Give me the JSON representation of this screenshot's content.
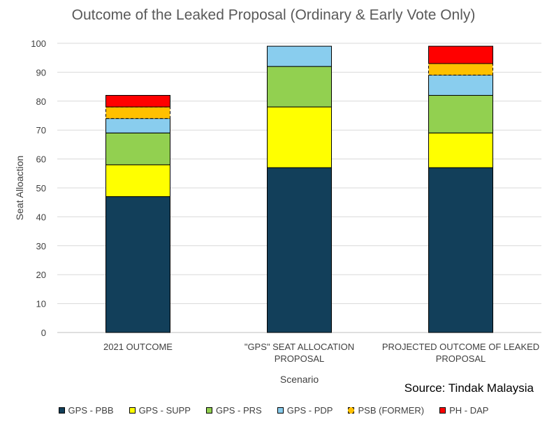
{
  "chart_data": {
    "type": "bar",
    "stacked": true,
    "title": "Outcome of the Leaked Proposal (Ordinary & Early Vote Only)",
    "xlabel": "Scenario",
    "ylabel": "Seat Alloaction",
    "ylim": [
      0,
      100
    ],
    "yticks": [
      0,
      10,
      20,
      30,
      40,
      50,
      60,
      70,
      80,
      90,
      100
    ],
    "grid": true,
    "legend_position": "bottom",
    "categories": [
      [
        "2021 OUTCOME"
      ],
      [
        "\"GPS\" SEAT ALLOCATION",
        "PROPOSAL"
      ],
      [
        "PROJECTED OUTCOME OF LEAKED",
        "PROPOSAL"
      ]
    ],
    "series": [
      {
        "name": "GPS - PBB",
        "color": "#123F5A",
        "dashed": false,
        "values": [
          47,
          57,
          57
        ]
      },
      {
        "name": "GPS - SUPP",
        "color": "#FFFF00",
        "dashed": false,
        "values": [
          11,
          21,
          12
        ]
      },
      {
        "name": "GPS - PRS",
        "color": "#92D050",
        "dashed": false,
        "values": [
          11,
          14,
          13
        ]
      },
      {
        "name": "GPS - PDP",
        "color": "#89CDEE",
        "dashed": false,
        "values": [
          5,
          7,
          7
        ]
      },
      {
        "name": "PSB (FORMER)",
        "color": "#FFC000",
        "dashed": true,
        "values": [
          4,
          0,
          4
        ]
      },
      {
        "name": "PH - DAP",
        "color": "#FF0000",
        "dashed": false,
        "values": [
          4,
          0,
          6
        ]
      }
    ]
  },
  "source_text": "Source: Tindak Malaysia"
}
